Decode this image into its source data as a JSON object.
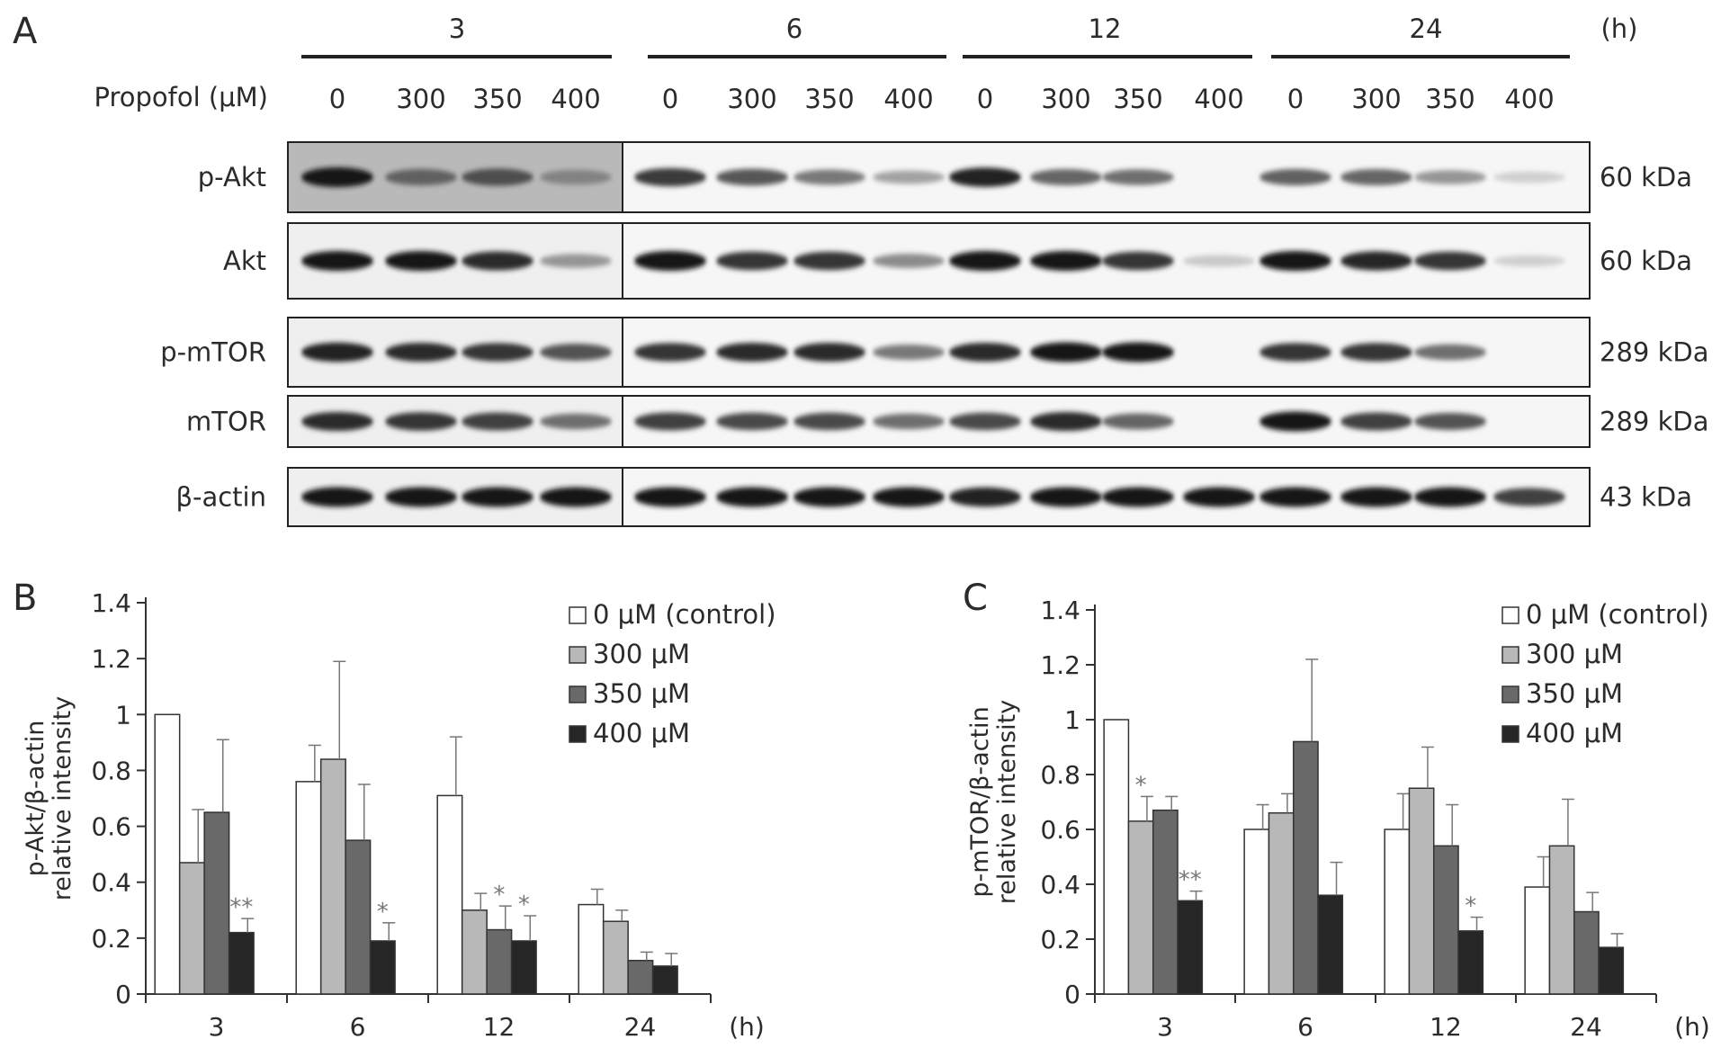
{
  "panel_labels": {
    "a": "A",
    "b": "B",
    "c": "C"
  },
  "blot": {
    "time_unit": "(h)",
    "timepoints": [
      "3",
      "6",
      "12",
      "24"
    ],
    "concentration_label": "Propofol (μM)",
    "concentrations": [
      "0",
      "300",
      "350",
      "400"
    ],
    "rows": [
      {
        "label": "p-Akt",
        "size": "60 kDa",
        "bands": [
          1.0,
          0.62,
          0.72,
          0.45,
          0.82,
          0.68,
          0.5,
          0.28,
          0.95,
          0.6,
          0.55,
          0.0,
          0.62,
          0.6,
          0.35,
          0.04
        ]
      },
      {
        "label": "Akt",
        "size": "60 kDa",
        "bands": [
          1.0,
          1.0,
          0.9,
          0.35,
          1.0,
          0.85,
          0.85,
          0.4,
          1.0,
          1.0,
          0.85,
          0.08,
          1.0,
          0.92,
          0.85,
          0.04
        ]
      },
      {
        "label": "p-mTOR",
        "size": "289 kDa",
        "bands": [
          0.95,
          0.9,
          0.85,
          0.7,
          0.85,
          0.9,
          0.9,
          0.5,
          0.9,
          1.0,
          1.0,
          0.0,
          0.85,
          0.85,
          0.55,
          0.0
        ]
      },
      {
        "label": "mTOR",
        "size": "289 kDa",
        "bands": [
          0.9,
          0.85,
          0.8,
          0.55,
          0.8,
          0.75,
          0.75,
          0.55,
          0.75,
          0.9,
          0.6,
          0.0,
          1.0,
          0.8,
          0.7,
          0.0
        ]
      },
      {
        "label": "β-actin",
        "size": "43 kDa",
        "bands": [
          1.0,
          1.0,
          1.0,
          1.0,
          1.0,
          1.0,
          1.0,
          1.0,
          0.95,
          1.0,
          1.0,
          1.0,
          1.0,
          1.0,
          1.0,
          0.8
        ]
      }
    ]
  },
  "chart_data": [
    {
      "panel": "B",
      "type": "bar",
      "ylabel": "p-Akt/β-actin\nrelative intensity",
      "xunit": "(h)",
      "categories": [
        "3",
        "6",
        "12",
        "24"
      ],
      "ylim": [
        0,
        1.4
      ],
      "yticks": [
        "0",
        "0.2",
        "0.4",
        "0.6",
        "0.8",
        "1",
        "1.2",
        "1.4"
      ],
      "legend_position": "top-right",
      "series": [
        {
          "name": "0 μM (control)",
          "color": "#ffffff",
          "values": [
            1.0,
            0.76,
            0.71,
            0.32
          ],
          "errors": [
            0,
            0.13,
            0.21,
            0.055
          ]
        },
        {
          "name": "300 μM",
          "color": "#b8b8b8",
          "values": [
            0.47,
            0.84,
            0.3,
            0.26
          ],
          "errors": [
            0.19,
            0.35,
            0.06,
            0.04
          ]
        },
        {
          "name": "350 μM",
          "color": "#696969",
          "values": [
            0.65,
            0.55,
            0.23,
            0.12
          ],
          "errors": [
            0.26,
            0.2,
            0.085,
            0.03
          ]
        },
        {
          "name": "400 μM",
          "color": "#262626",
          "values": [
            0.22,
            0.19,
            0.19,
            0.1
          ],
          "errors": [
            0.05,
            0.065,
            0.09,
            0.045
          ]
        }
      ],
      "annotations": [
        {
          "category": "3",
          "series": "400 μM",
          "text": "**"
        },
        {
          "category": "6",
          "series": "400 μM",
          "text": "*"
        },
        {
          "category": "12",
          "series": "350 μM",
          "text": "*"
        },
        {
          "category": "12",
          "series": "400 μM",
          "text": "*"
        }
      ]
    },
    {
      "panel": "C",
      "type": "bar",
      "ylabel": "p-mTOR/β-actin\nrelative intensity",
      "xunit": "(h)",
      "categories": [
        "3",
        "6",
        "12",
        "24"
      ],
      "ylim": [
        0,
        1.4
      ],
      "yticks": [
        "0",
        "0.2",
        "0.4",
        "0.6",
        "0.8",
        "1",
        "1.2",
        "1.4"
      ],
      "legend_position": "top-right",
      "series": [
        {
          "name": "0 μM (control)",
          "color": "#ffffff",
          "values": [
            1.0,
            0.6,
            0.6,
            0.39
          ],
          "errors": [
            0,
            0.09,
            0.13,
            0.11
          ]
        },
        {
          "name": "300 μM",
          "color": "#b8b8b8",
          "values": [
            0.63,
            0.66,
            0.75,
            0.54
          ],
          "errors": [
            0.09,
            0.07,
            0.15,
            0.17
          ]
        },
        {
          "name": "350 μM",
          "color": "#696969",
          "values": [
            0.67,
            0.92,
            0.54,
            0.3
          ],
          "errors": [
            0.05,
            0.3,
            0.15,
            0.07
          ]
        },
        {
          "name": "400 μM",
          "color": "#262626",
          "values": [
            0.34,
            0.36,
            0.23,
            0.17
          ],
          "errors": [
            0.035,
            0.12,
            0.05,
            0.05
          ]
        }
      ],
      "annotations": [
        {
          "category": "3",
          "series": "300 μM",
          "text": "*"
        },
        {
          "category": "3",
          "series": "400 μM",
          "text": "**"
        },
        {
          "category": "12",
          "series": "400 μM",
          "text": "*"
        }
      ]
    }
  ]
}
